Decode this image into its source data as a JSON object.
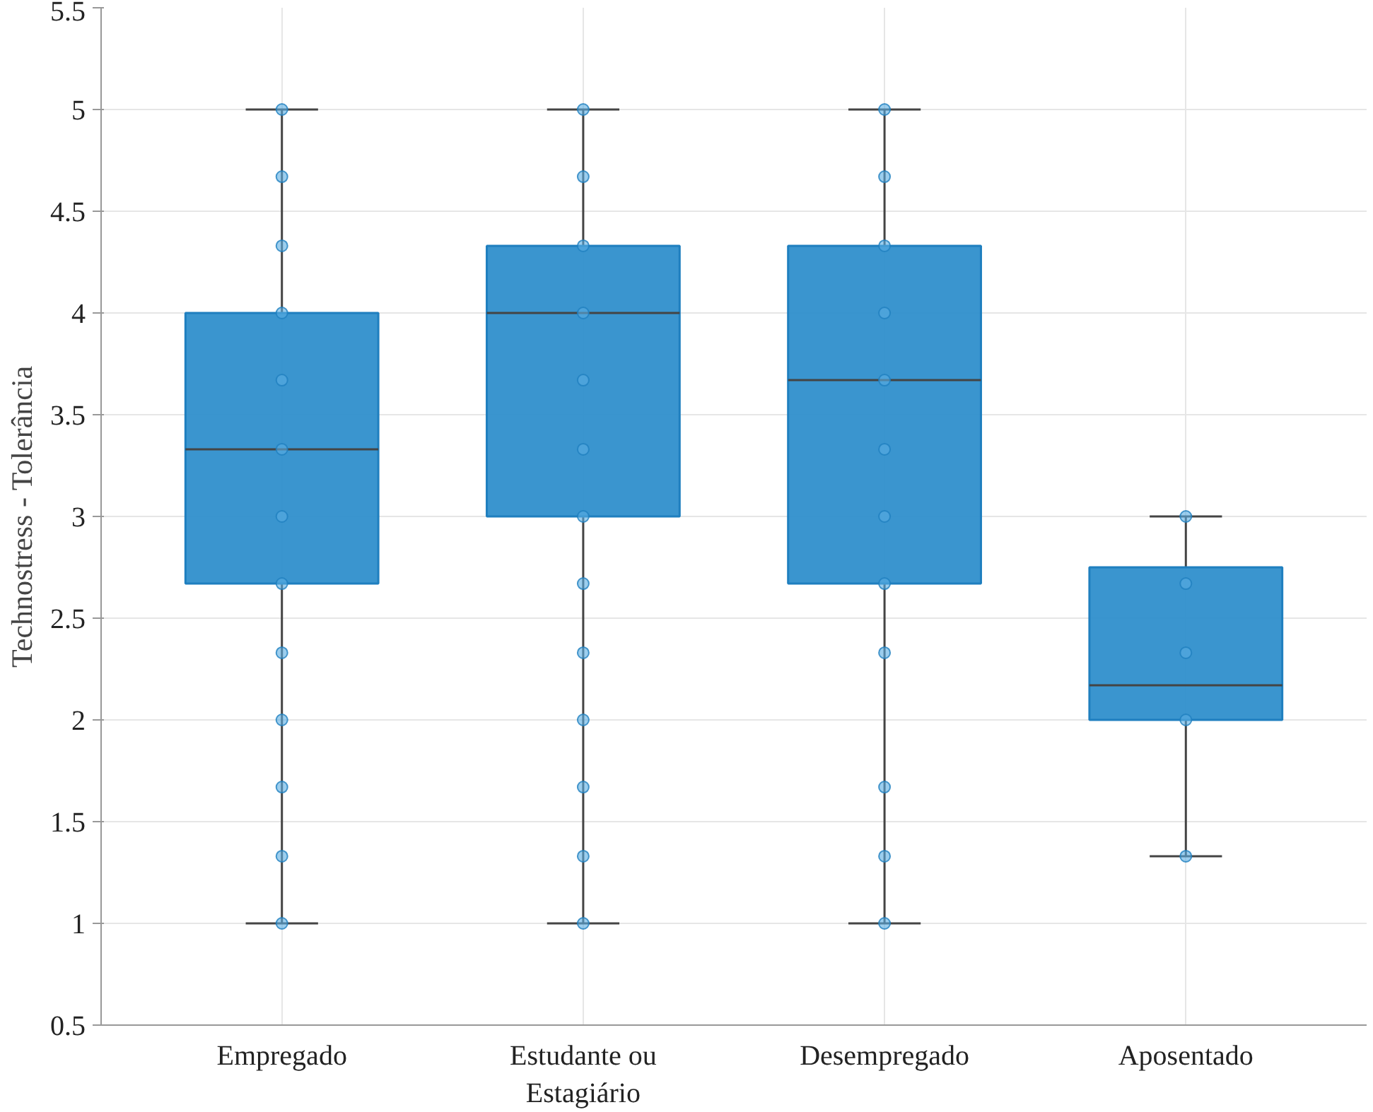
{
  "chart_data": {
    "type": "box",
    "ylabel": "Technostress - Tolerância",
    "categories": [
      "Empregado",
      "Estudante ou Estagiário",
      "Desempregado",
      "Aposentado"
    ],
    "color": "#2f8fcc",
    "boxes": [
      {
        "low": 1,
        "q1": 2.67,
        "median": 3.33,
        "q3": 4,
        "high": 5
      },
      {
        "low": 1,
        "q1": 3,
        "median": 4,
        "q3": 4.33,
        "high": 5
      },
      {
        "low": 1,
        "q1": 2.67,
        "median": 3.67,
        "q3": 4.33,
        "high": 5
      },
      {
        "low": 1.33,
        "q1": 2,
        "median": 2.17,
        "q3": 2.75,
        "high": 3
      }
    ],
    "series": [
      {
        "type": "scatter",
        "color": "#5aaee2",
        "x": [
          "Empregado",
          "Empregado",
          "Empregado",
          "Empregado",
          "Empregado",
          "Empregado",
          "Empregado",
          "Empregado",
          "Empregado",
          "Empregado",
          "Empregado",
          "Empregado",
          "Empregado",
          "Estudante ou Estagiário",
          "Estudante ou Estagiário",
          "Estudante ou Estagiário",
          "Estudante ou Estagiário",
          "Estudante ou Estagiário",
          "Estudante ou Estagiário",
          "Estudante ou Estagiário",
          "Estudante ou Estagiário",
          "Estudante ou Estagiário",
          "Estudante ou Estagiário",
          "Estudante ou Estagiário",
          "Estudante ou Estagiário",
          "Estudante ou Estagiário",
          "Desempregado",
          "Desempregado",
          "Desempregado",
          "Desempregado",
          "Desempregado",
          "Desempregado",
          "Desempregado",
          "Desempregado",
          "Desempregado",
          "Desempregado",
          "Desempregado",
          "Desempregado",
          "Aposentado",
          "Aposentado",
          "Aposentado",
          "Aposentado",
          "Aposentado"
        ],
        "values": [
          1,
          1.33,
          1.67,
          2,
          2.33,
          2.67,
          3,
          3.33,
          3.67,
          4,
          4.33,
          4.67,
          5,
          1,
          1.33,
          1.67,
          2,
          2.33,
          2.67,
          3,
          3.33,
          3.67,
          4,
          4.33,
          4.67,
          5,
          1,
          1.33,
          1.67,
          2.33,
          2.67,
          3,
          3.33,
          3.67,
          4,
          4.33,
          4.67,
          5,
          1.33,
          2,
          2.33,
          2.67,
          3
        ]
      }
    ],
    "marker": "circle",
    "ylim": [
      0.5,
      5.5
    ],
    "yticks": [
      0.5,
      1,
      1.5,
      2,
      2.5,
      3,
      3.5,
      4,
      4.5,
      5,
      5.5
    ],
    "grid": true
  }
}
